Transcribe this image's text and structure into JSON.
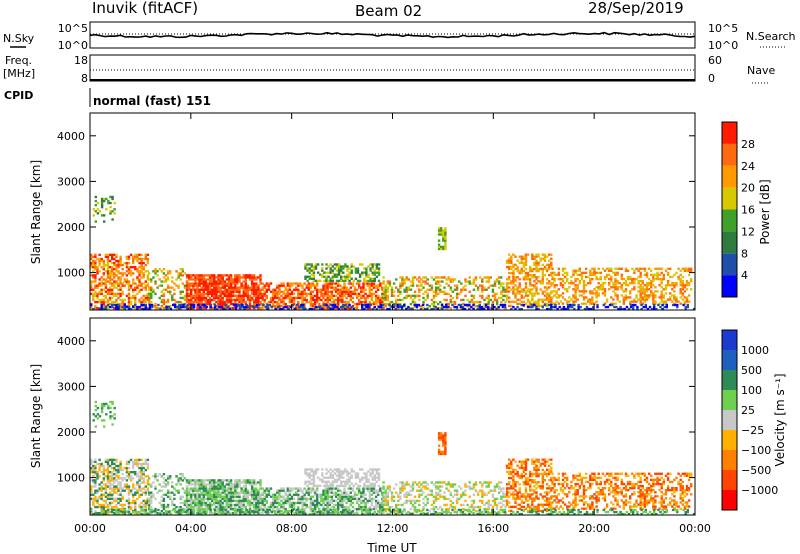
{
  "header": {
    "station": "Inuvik (fitACF)",
    "beam": "Beam 02",
    "date": "28/Sep/2019"
  },
  "side_labels": {
    "nsky": "N.Sky",
    "nsearch": "N.Search",
    "freq_line1": "Freq.",
    "freq_line2": "[MHz]",
    "nave": "Nave",
    "cpid": "CPID"
  },
  "cpid_text": "normal (fast) 151",
  "colors": {
    "power": [
      "#0000ff",
      "#1f4fa8",
      "#2f7a3f",
      "#3fa02a",
      "#d8c800",
      "#ff9a00",
      "#ff6a10",
      "#ff1a00"
    ],
    "velocity": [
      "#ff0000",
      "#ff4500",
      "#ff7f00",
      "#ffb000",
      "#c8c8c8",
      "#6fd050",
      "#2e8b57",
      "#1f5fbf",
      "#1a3ad0"
    ],
    "ground_scatter": "#bfbfbf"
  },
  "chart_data": [
    {
      "type": "line",
      "name": "noise",
      "left_axis_label": "N.Sky",
      "right_axis_label": "N.Search",
      "left_ticks": [
        "10^5",
        "10^0"
      ],
      "right_ticks": [
        "10^5",
        "10^0"
      ]
    },
    {
      "type": "line",
      "name": "frequency",
      "left_axis_label": "Freq. [MHz]",
      "right_axis_label": "Nave",
      "left_ticks": [
        "18",
        "8"
      ],
      "right_ticks": [
        "60",
        "0"
      ],
      "left_ylim": [
        8,
        18
      ],
      "right_ylim": [
        0,
        60
      ]
    },
    {
      "type": "heatmap",
      "name": "power",
      "xlabel": "",
      "ylabel": "Slant Range [km]",
      "xlim_hours": [
        0,
        24
      ],
      "ylim": [
        180,
        4500
      ],
      "x_ticks": [
        "00:00",
        "04:00",
        "08:00",
        "12:00",
        "16:00",
        "20:00",
        "00:00"
      ],
      "y_ticks": [
        1000,
        2000,
        3000,
        4000
      ],
      "colorbar": {
        "label": "Power [dB]",
        "range": [
          0,
          32
        ],
        "tick_labels": [
          "4",
          "8",
          "12",
          "16",
          "20",
          "24",
          "28"
        ]
      }
    },
    {
      "type": "heatmap",
      "name": "velocity",
      "xlabel": "Time UT",
      "ylabel": "Slant Range [km]",
      "xlim_hours": [
        0,
        24
      ],
      "ylim": [
        180,
        4500
      ],
      "x_ticks": [
        "00:00",
        "04:00",
        "08:00",
        "12:00",
        "16:00",
        "20:00",
        "00:00"
      ],
      "y_ticks": [
        1000,
        2000,
        3000,
        4000
      ],
      "colorbar": {
        "label": "Velocity [m s⁻¹]",
        "tick_labels": [
          "1000",
          "500",
          "100",
          "25",
          "−25",
          "−100",
          "−500",
          "−1000"
        ]
      }
    }
  ]
}
